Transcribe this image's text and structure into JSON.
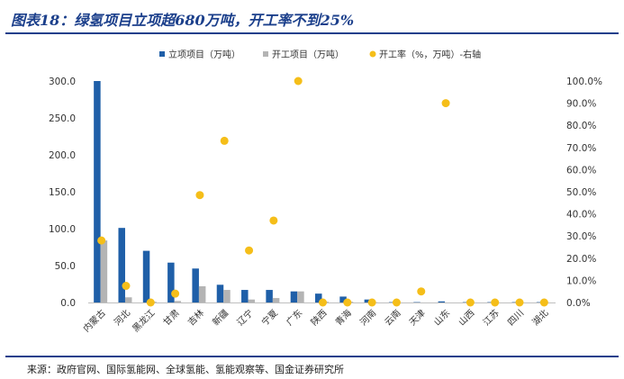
{
  "title": "图表18：绿氢项目立项超680万吨，开工率不到25%",
  "source": "来源：政府官网、国际氢能网、全球氢能、氢能观察等、国金证券研究所",
  "chart_data": {
    "type": "bar",
    "categories": [
      "内蒙古",
      "河北",
      "黑龙江",
      "甘肃",
      "吉林",
      "新疆",
      "辽宁",
      "宁夏",
      "广东",
      "陕西",
      "青海",
      "河南",
      "云南",
      "天津",
      "山东",
      "山西",
      "江苏",
      "四川",
      "湖北"
    ],
    "series": [
      {
        "name": "立项项目（万吨）",
        "kind": "bar",
        "axis": "left",
        "color": "#1f5fa8",
        "values": [
          300,
          101,
          70,
          54,
          46,
          24,
          17,
          17,
          15,
          12,
          8,
          4,
          0.5,
          0.5,
          1.5,
          0.5,
          0.5,
          0.5,
          0.5
        ]
      },
      {
        "name": "开工项目（万吨）",
        "kind": "bar",
        "axis": "left",
        "color": "#b4b4b4",
        "values": [
          84,
          7,
          1,
          2,
          22,
          17,
          4,
          6,
          15,
          1,
          1,
          0.3,
          0,
          0,
          0,
          0,
          0,
          0,
          0
        ]
      },
      {
        "name": "开工率（%，万吨）-右轴",
        "kind": "scatter",
        "axis": "right",
        "color": "#f5be19",
        "values": [
          28,
          7.5,
          0,
          4,
          48.5,
          73,
          23.5,
          37,
          100,
          0,
          0,
          0,
          0,
          5,
          90,
          0,
          0,
          0,
          0
        ]
      }
    ],
    "y_left": {
      "min": 0,
      "max": 300,
      "step": 50,
      "ticks": [
        "0.0",
        "50.0",
        "100.0",
        "150.0",
        "200.0",
        "250.0",
        "300.0"
      ]
    },
    "y_right": {
      "min": 0,
      "max": 100,
      "step": 10,
      "ticks": [
        "0.0%",
        "10.0%",
        "20.0%",
        "30.0%",
        "40.0%",
        "50.0%",
        "60.0%",
        "70.0%",
        "80.0%",
        "90.0%",
        "100.0%"
      ]
    },
    "legend_position": "top",
    "grid": false
  }
}
